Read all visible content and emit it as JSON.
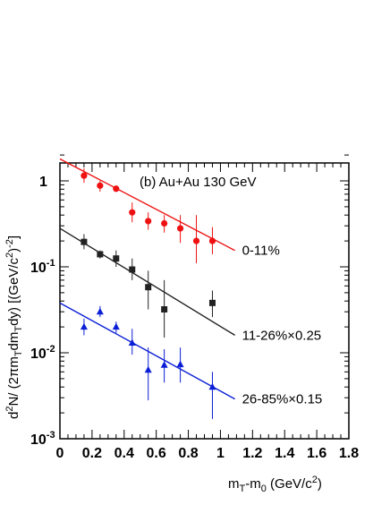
{
  "chart_data": {
    "type": "scatter",
    "title": "(b) Au+Au 130 GeV",
    "xlabel": {
      "base": "m",
      "sub1": "T",
      "mid": "-m",
      "sub2": "0",
      "unit": " (GeV/c",
      "sup": "2",
      "close": ")"
    },
    "ylabel": {
      "p1": "d",
      "sup1": "2",
      "p2": "N/ (2πm",
      "sub1": "T",
      "p3": "dm",
      "sub2": "T",
      "p4": "dy) [(GeV/c",
      "sup2": "2",
      "p5": ")",
      "sup3": "-2",
      "p6": "]"
    },
    "xlim": [
      0,
      1.8
    ],
    "ylim": [
      0.001,
      2
    ],
    "yscale": "log",
    "x_ticks": [
      "0",
      "0.2",
      "0.4",
      "0.6",
      "0.8",
      "1",
      "1.2",
      "1.4",
      "1.6",
      "1.8"
    ],
    "y_ticks": [
      {
        "value": 1,
        "base": "1",
        "exp": ""
      },
      {
        "value": 0.1,
        "base": "10",
        "exp": "-1"
      },
      {
        "value": 0.01,
        "base": "10",
        "exp": "-2"
      },
      {
        "value": 0.001,
        "base": "10",
        "exp": "-3"
      }
    ],
    "series": [
      {
        "name": "0-11%",
        "marker": "circle",
        "color": "#ee1111",
        "points": [
          {
            "x": 0.15,
            "y": 1.15,
            "lo": 0.95,
            "hi": 1.4
          },
          {
            "x": 0.25,
            "y": 0.88,
            "lo": 0.75,
            "hi": 1.0
          },
          {
            "x": 0.35,
            "y": 0.81,
            "lo": 0.78,
            "hi": 0.84
          },
          {
            "x": 0.45,
            "y": 0.43,
            "lo": 0.33,
            "hi": 0.56
          },
          {
            "x": 0.55,
            "y": 0.34,
            "lo": 0.27,
            "hi": 0.43
          },
          {
            "x": 0.65,
            "y": 0.32,
            "lo": 0.25,
            "hi": 0.4
          },
          {
            "x": 0.75,
            "y": 0.28,
            "lo": 0.19,
            "hi": 0.4
          },
          {
            "x": 0.85,
            "y": 0.2,
            "lo": 0.11,
            "hi": 0.4
          },
          {
            "x": 0.95,
            "y": 0.2,
            "lo": 0.14,
            "hi": 0.29
          }
        ],
        "fit": [
          [
            0.0,
            1.8
          ],
          [
            1.09,
            0.155
          ]
        ]
      },
      {
        "name": "11-26%×0.25",
        "marker": "square",
        "color": "#222222",
        "points": [
          {
            "x": 0.15,
            "y": 0.195,
            "lo": 0.16,
            "hi": 0.24
          },
          {
            "x": 0.25,
            "y": 0.14,
            "lo": 0.125,
            "hi": 0.155
          },
          {
            "x": 0.35,
            "y": 0.125,
            "lo": 0.1,
            "hi": 0.155
          },
          {
            "x": 0.45,
            "y": 0.093,
            "lo": 0.07,
            "hi": 0.125
          },
          {
            "x": 0.55,
            "y": 0.058,
            "lo": 0.032,
            "hi": 0.09
          },
          {
            "x": 0.65,
            "y": 0.032,
            "lo": 0.015,
            "hi": 0.07
          },
          {
            "x": 0.95,
            "y": 0.038,
            "lo": 0.026,
            "hi": 0.053
          }
        ],
        "fit": [
          [
            0.0,
            0.28
          ],
          [
            1.09,
            0.016
          ]
        ]
      },
      {
        "name": "26-85%×0.15",
        "marker": "triangle",
        "color": "#0b1fd6",
        "points": [
          {
            "x": 0.15,
            "y": 0.02,
            "lo": 0.016,
            "hi": 0.025
          },
          {
            "x": 0.25,
            "y": 0.03,
            "lo": 0.026,
            "hi": 0.035
          },
          {
            "x": 0.35,
            "y": 0.02,
            "lo": 0.017,
            "hi": 0.023
          },
          {
            "x": 0.45,
            "y": 0.013,
            "lo": 0.0095,
            "hi": 0.019
          },
          {
            "x": 0.55,
            "y": 0.0063,
            "lo": 0.0028,
            "hi": 0.0115
          },
          {
            "x": 0.65,
            "y": 0.0072,
            "lo": 0.0045,
            "hi": 0.011
          },
          {
            "x": 0.75,
            "y": 0.0073,
            "lo": 0.0045,
            "hi": 0.0115
          },
          {
            "x": 0.95,
            "y": 0.004,
            "lo": 0.0017,
            "hi": 0.006
          }
        ],
        "fit": [
          [
            0.0,
            0.038
          ],
          [
            1.09,
            0.0029
          ]
        ]
      }
    ]
  }
}
